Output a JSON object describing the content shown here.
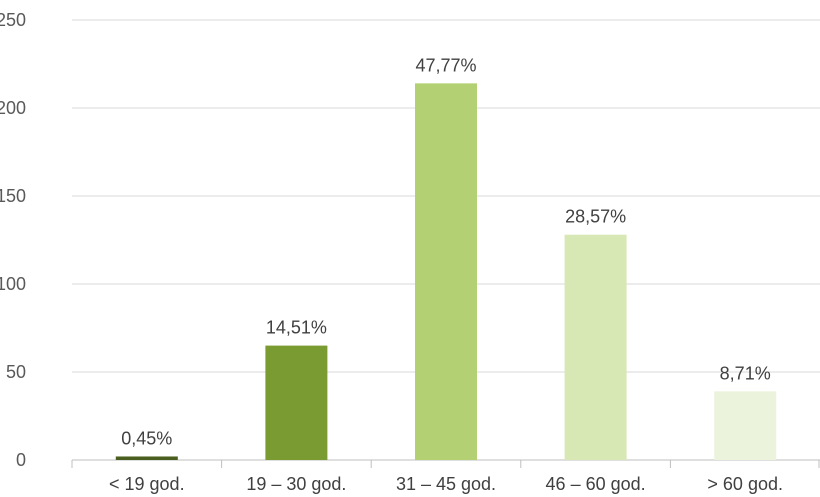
{
  "chart_data": {
    "type": "bar",
    "title": "",
    "xlabel": "",
    "ylabel": "",
    "categories": [
      "< 19 god.",
      "19 – 30 god.",
      "31 – 45 god.",
      "46 – 60 god.",
      "> 60 god."
    ],
    "values": [
      2,
      65,
      214,
      128,
      39
    ],
    "data_labels": [
      "0,45%",
      "14,51%",
      "47,77%",
      "28,57%",
      "8,71%"
    ],
    "bar_colors": [
      "#4a5e1f",
      "#7a9a32",
      "#b3d173",
      "#d8e8b4",
      "#ebf3dc"
    ],
    "ylim": [
      0,
      250
    ],
    "yticks": [
      0,
      50,
      100,
      150,
      200,
      250
    ],
    "grid": true,
    "legend": "none"
  }
}
